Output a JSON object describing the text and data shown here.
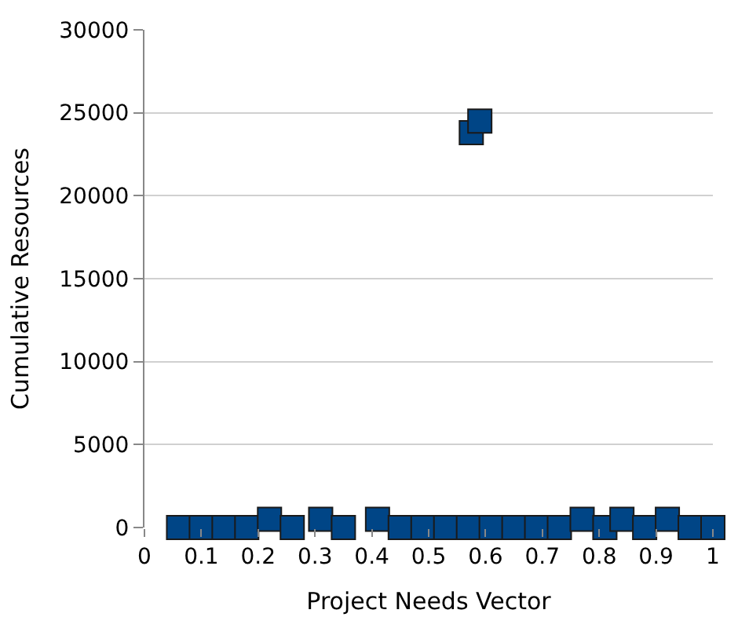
{
  "chart_data": {
    "type": "scatter",
    "xlabel": "Project Needs Vector",
    "ylabel": "Cumulative Resources",
    "x": [
      0.06,
      0.1,
      0.14,
      0.18,
      0.22,
      0.26,
      0.31,
      0.35,
      0.41,
      0.45,
      0.49,
      0.53,
      0.57,
      0.61,
      0.65,
      0.69,
      0.73,
      0.77,
      0.81,
      0.84,
      0.88,
      0.92,
      0.96,
      1.0,
      0.575,
      0.59
    ],
    "values": [
      0,
      0,
      0,
      0,
      500,
      0,
      500,
      0,
      500,
      0,
      0,
      0,
      0,
      0,
      0,
      0,
      0,
      500,
      0,
      500,
      0,
      500,
      0,
      0,
      23800,
      24500
    ],
    "color": "#004586",
    "marker": "square",
    "xlim": [
      0,
      1
    ],
    "xticks": [
      0,
      0.1,
      0.2,
      0.3,
      0.4,
      0.5,
      0.6,
      0.7,
      0.8,
      0.9,
      1
    ],
    "ylim": [
      0,
      30000
    ],
    "yticks": [
      0,
      5000,
      10000,
      15000,
      20000,
      25000,
      30000
    ],
    "grid": "y"
  }
}
